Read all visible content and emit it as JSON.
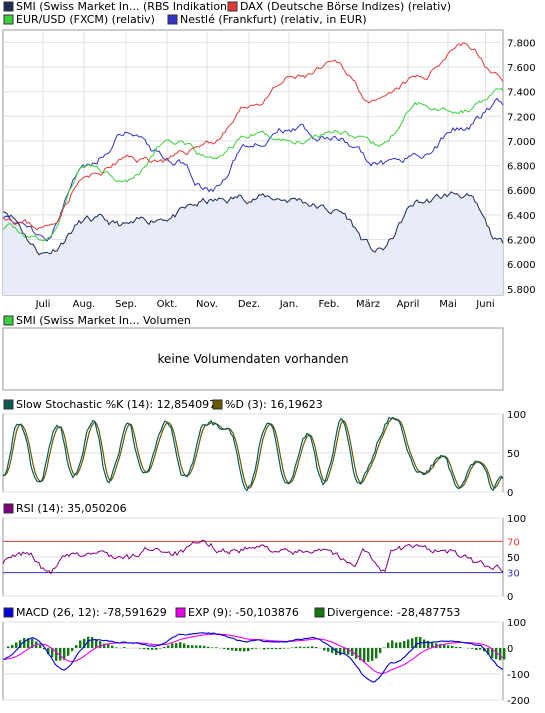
{
  "main": {
    "legend": [
      {
        "label": "SMI (Swiss Market In... (RBS Indikation)",
        "color": "#1f2a55"
      },
      {
        "label": "DAX (Deutsche Börse Indizes) (relativ)",
        "color": "#e03a3a"
      },
      {
        "label": "EUR/USD (FXCM) (relativ)",
        "color": "#3ad23a"
      },
      {
        "label": "Nestlé (Frankfurt) (relativ, in EUR)",
        "color": "#3434c8"
      }
    ],
    "y_ticks": [
      "7.800",
      "7.600",
      "7.400",
      "7.200",
      "7.000",
      "6.800",
      "6.600",
      "6.400",
      "6.200",
      "6.000",
      "5.800"
    ],
    "x_ticks": [
      "Juli",
      "Aug.",
      "Sep.",
      "Okt.",
      "Nov.",
      "Dez.",
      "Jan.",
      "Feb.",
      "März",
      "April",
      "Mai",
      "Juni"
    ]
  },
  "volume": {
    "legend": {
      "label": "SMI (Swiss Market In... Volumen",
      "color": "#3ad23a"
    },
    "message": "keine Volumendaten vorhanden"
  },
  "stochastic": {
    "legend": [
      {
        "label": "Slow Stochastic %K (14): 12,854097",
        "color": "#0a5a5a"
      },
      {
        "label": "%D (3): 16,19623",
        "color": "#6b5a00"
      }
    ],
    "y_ticks": [
      "100",
      "50",
      "0"
    ]
  },
  "rsi": {
    "legend": {
      "label": "RSI (14): 35,050206",
      "color": "#800080"
    },
    "y_ticks": [
      "100",
      "70",
      "50",
      "30",
      "0"
    ],
    "line_colors": {
      "upper": "#e03a3a",
      "lower": "#3434c8"
    }
  },
  "macd": {
    "legend": [
      {
        "label": "MACD (26, 12): -78,591629",
        "color": "#0000dd"
      },
      {
        "label": "EXP (9): -50,103876",
        "color": "#ee00ee"
      },
      {
        "label": "Divergence: -28,487753",
        "color": "#117711"
      }
    ],
    "y_ticks": [
      "100",
      "0",
      "-100",
      "-200"
    ]
  },
  "chart_data": [
    {
      "type": "line",
      "x": [
        "Juni",
        "Juli",
        "Aug.",
        "Sep.",
        "Okt.",
        "Nov.",
        "Dez.",
        "Jan.",
        "Feb.",
        "März",
        "April",
        "Mai",
        "Juni"
      ],
      "ylim": [
        5750,
        7900
      ],
      "series": [
        {
          "name": "SMI (Swiss Market In... (RBS Indikation)",
          "color": "#1f2a55",
          "values": [
            6450,
            6100,
            6350,
            6300,
            6400,
            6500,
            6550,
            6530,
            6430,
            6100,
            6500,
            6570,
            6150
          ]
        },
        {
          "name": "DAX (Deutsche Börse Indizes) (relativ)",
          "color": "#e03a3a",
          "values": [
            6400,
            6300,
            6700,
            6850,
            6850,
            7000,
            7300,
            7500,
            7600,
            7300,
            7500,
            7800,
            7500
          ]
        },
        {
          "name": "EUR/USD (FXCM) (relativ)",
          "color": "#3ad23a",
          "values": [
            6300,
            6200,
            6800,
            6700,
            7000,
            6850,
            7050,
            7000,
            7100,
            6950,
            7300,
            7250,
            7400
          ]
        },
        {
          "name": "Nestlé (Frankfurt) (relativ, in EUR)",
          "color": "#3434c8",
          "values": [
            6400,
            6250,
            6800,
            7100,
            6850,
            6600,
            7000,
            7100,
            7000,
            6800,
            6900,
            7100,
            7300
          ]
        }
      ]
    },
    {
      "type": "line",
      "ylim": [
        0,
        100
      ],
      "series": [
        {
          "name": "Slow Stochastic %K (14)",
          "color": "#0a5a5a",
          "last": 12.854097
        },
        {
          "name": "%D (3)",
          "color": "#6b5a00",
          "last": 16.19623
        }
      ],
      "cycles": [
        [
          0.0,
          25
        ],
        [
          0.03,
          90
        ],
        [
          0.07,
          10
        ],
        [
          0.11,
          90
        ],
        [
          0.14,
          20
        ],
        [
          0.18,
          95
        ],
        [
          0.21,
          15
        ],
        [
          0.25,
          85
        ],
        [
          0.28,
          20
        ],
        [
          0.33,
          90
        ],
        [
          0.36,
          15
        ],
        [
          0.41,
          90
        ],
        [
          0.45,
          80
        ],
        [
          0.49,
          10
        ],
        [
          0.53,
          90
        ],
        [
          0.57,
          10
        ],
        [
          0.61,
          75
        ],
        [
          0.64,
          10
        ],
        [
          0.68,
          90
        ],
        [
          0.71,
          15
        ],
        [
          0.78,
          95
        ],
        [
          0.84,
          20
        ],
        [
          0.88,
          50
        ],
        [
          0.91,
          5
        ],
        [
          0.95,
          40
        ],
        [
          0.98,
          5
        ],
        [
          1.0,
          20
        ]
      ]
    },
    {
      "type": "line",
      "ylim": [
        0,
        100
      ],
      "levels": [
        70,
        30
      ],
      "series": [
        {
          "name": "RSI (14)",
          "color": "#800080",
          "last": 35.050206
        }
      ],
      "points": [
        [
          0.0,
          45
        ],
        [
          0.05,
          55
        ],
        [
          0.09,
          30
        ],
        [
          0.13,
          50
        ],
        [
          0.19,
          55
        ],
        [
          0.25,
          48
        ],
        [
          0.3,
          62
        ],
        [
          0.35,
          55
        ],
        [
          0.4,
          67
        ],
        [
          0.45,
          58
        ],
        [
          0.52,
          62
        ],
        [
          0.58,
          55
        ],
        [
          0.64,
          62
        ],
        [
          0.7,
          40
        ],
        [
          0.72,
          60
        ],
        [
          0.76,
          30
        ],
        [
          0.78,
          60
        ],
        [
          0.84,
          62
        ],
        [
          0.9,
          55
        ],
        [
          0.95,
          42
        ],
        [
          1.0,
          35
        ]
      ]
    },
    {
      "type": "line",
      "ylim": [
        -200,
        100
      ],
      "series": [
        {
          "name": "MACD (26, 12)",
          "color": "#0000dd",
          "last": -78.591629
        },
        {
          "name": "EXP (9)",
          "color": "#ee00ee",
          "last": -50.103876
        },
        {
          "name": "Divergence",
          "color": "#117711",
          "last": -28.487753
        }
      ],
      "points": [
        [
          0.0,
          -40
        ],
        [
          0.06,
          40
        ],
        [
          0.12,
          -80
        ],
        [
          0.18,
          30
        ],
        [
          0.25,
          20
        ],
        [
          0.3,
          10
        ],
        [
          0.36,
          50
        ],
        [
          0.42,
          55
        ],
        [
          0.48,
          30
        ],
        [
          0.55,
          20
        ],
        [
          0.62,
          40
        ],
        [
          0.68,
          -20
        ],
        [
          0.74,
          -130
        ],
        [
          0.78,
          -60
        ],
        [
          0.84,
          20
        ],
        [
          0.9,
          30
        ],
        [
          0.95,
          10
        ],
        [
          1.0,
          -80
        ]
      ]
    }
  ]
}
